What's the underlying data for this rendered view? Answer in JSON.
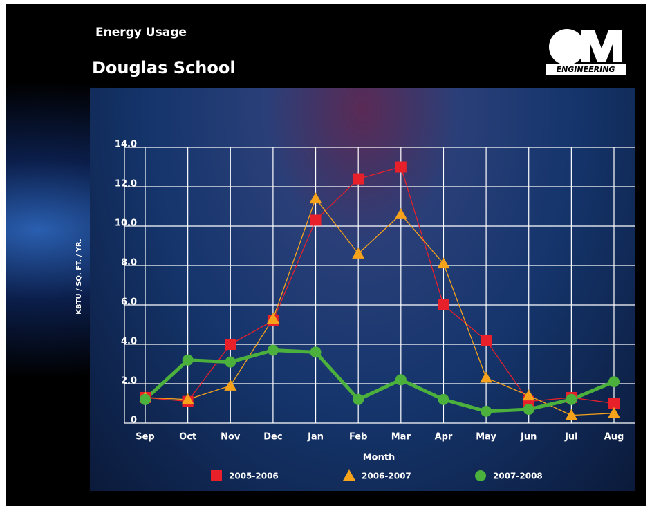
{
  "header": {
    "subtitle": "Energy Usage",
    "title": "Douglas School",
    "logo_text": "ENGINEERING"
  },
  "chart_data": {
    "type": "line",
    "x_label": "Month",
    "y_label": "KBTU / SQ. FT. / YR.",
    "categories": [
      "Sep",
      "Oct",
      "Nov",
      "Dec",
      "Jan",
      "Feb",
      "Mar",
      "Apr",
      "May",
      "Jun",
      "Jul",
      "Aug"
    ],
    "series": [
      {
        "name": "2005-2006",
        "color": "#e8202a",
        "marker": "square",
        "values": [
          1.3,
          1.1,
          4.0,
          5.2,
          10.3,
          12.4,
          13.0,
          6.0,
          4.2,
          1.1,
          1.3,
          1.0
        ]
      },
      {
        "name": "2006-2007",
        "color": "#f7a21b",
        "marker": "triangle",
        "values": [
          1.3,
          1.2,
          1.9,
          5.3,
          11.4,
          8.6,
          10.6,
          8.1,
          2.3,
          1.4,
          0.4,
          0.5
        ]
      },
      {
        "name": "2007-2008",
        "color": "#4cb03c",
        "marker": "circle",
        "values": [
          1.2,
          3.2,
          3.1,
          3.7,
          3.6,
          1.2,
          2.2,
          1.2,
          0.6,
          0.7,
          1.2,
          2.1
        ]
      }
    ],
    "ylim": [
      0,
      14
    ],
    "yticks": [
      0,
      {
        "value": 2,
        "label": "2.0"
      },
      {
        "value": 4,
        "label": "4.0"
      },
      {
        "value": 6,
        "label": "6.0"
      },
      {
        "value": 8,
        "label": "8.0"
      },
      {
        "value": 10,
        "label": "10.0"
      },
      {
        "value": 12,
        "label": "12.0"
      },
      {
        "value": 14,
        "label": "14.0"
      }
    ],
    "grid": true,
    "legend": "bottom"
  }
}
